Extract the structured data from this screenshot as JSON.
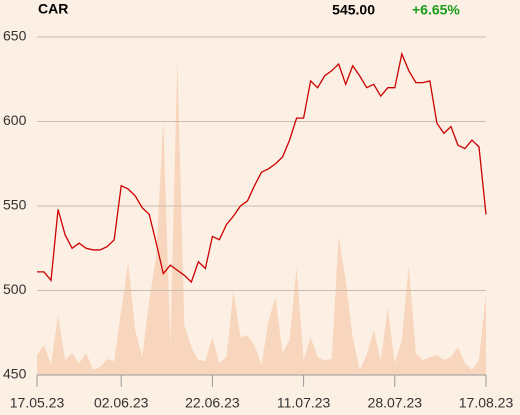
{
  "chart_data": {
    "type": "line",
    "title": "CAR",
    "price": "545.00",
    "change": "+6.65%",
    "change_color": "#1a9e1a",
    "categories": [
      "17.05.23",
      null,
      null,
      null,
      null,
      null,
      null,
      null,
      null,
      null,
      null,
      null,
      "02.06.23",
      null,
      null,
      null,
      null,
      null,
      null,
      null,
      null,
      null,
      null,
      null,
      null,
      "22.06.23",
      null,
      null,
      null,
      null,
      null,
      null,
      null,
      null,
      null,
      null,
      null,
      null,
      "11.07.23",
      null,
      null,
      null,
      null,
      null,
      null,
      null,
      null,
      null,
      null,
      null,
      null,
      "28.07.23",
      null,
      null,
      null,
      null,
      null,
      null,
      null,
      null,
      null,
      null,
      null,
      null,
      "17.08.23"
    ],
    "series": [
      {
        "name": "Volume",
        "color": "#f8d6bd",
        "axis": "y2",
        "values": [
          20,
          30,
          10,
          60,
          15,
          22,
          12,
          22,
          5,
          8,
          16,
          14,
          65,
          113,
          45,
          18,
          75,
          120,
          257,
          30,
          317,
          50,
          28,
          15,
          14,
          38,
          12,
          18,
          85,
          38,
          40,
          30,
          10,
          55,
          78,
          22,
          35,
          108,
          15,
          38,
          18,
          15,
          16,
          140,
          95,
          38,
          5,
          20,
          45,
          15,
          67,
          12,
          35,
          110,
          22,
          15,
          18,
          20,
          15,
          18,
          28,
          12,
          5,
          15,
          82
        ]
      },
      {
        "name": "Price",
        "color": "#cc0000",
        "values": [
          511,
          511,
          506,
          548,
          533,
          525,
          528,
          525,
          524,
          524,
          526,
          530,
          562,
          560,
          556,
          549,
          545,
          528,
          510,
          515,
          512,
          509,
          505,
          517,
          513,
          532,
          530,
          539,
          544,
          550,
          553,
          562,
          570,
          572,
          575,
          579,
          589,
          602,
          602,
          624,
          620,
          627,
          630,
          634,
          622,
          633,
          627,
          620,
          622,
          615,
          620,
          620,
          640,
          630,
          623,
          623,
          624,
          599,
          593,
          597,
          586,
          584,
          589,
          585,
          545
        ]
      }
    ],
    "ylim": [
      450,
      650
    ],
    "yticks": [
      450,
      500,
      550,
      600,
      650
    ],
    "y2lim": [
      0,
      340
    ],
    "grid": true
  }
}
